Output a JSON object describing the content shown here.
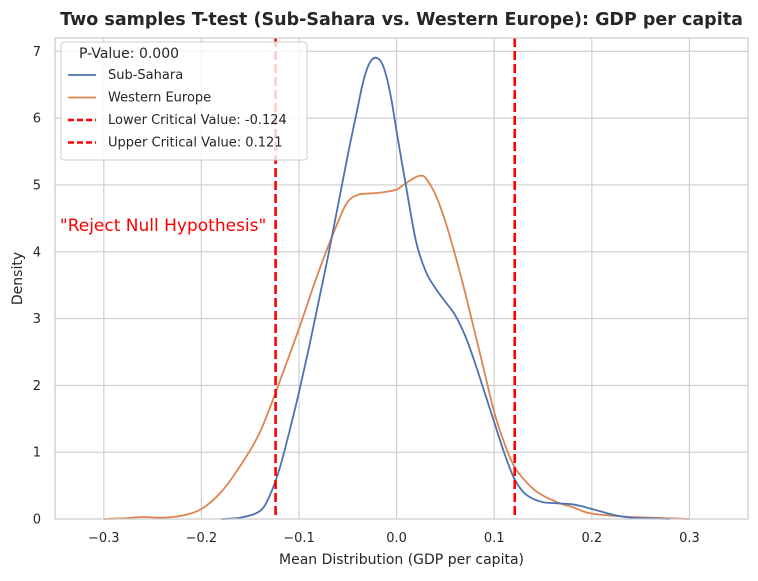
{
  "chart_data": {
    "type": "line",
    "title": "Two samples T-test (Sub-Sahara vs. Western Europe): GDP per capita",
    "xlabel": "Mean Distribution (GDP per capita)",
    "ylabel": "Density",
    "xlim": [
      -0.35,
      0.36
    ],
    "ylim": [
      0,
      7.2
    ],
    "grid": true,
    "legend_position": "top-left",
    "legend_title": "P-Value: 0.000",
    "x_ticks": [
      -0.3,
      -0.2,
      -0.1,
      0.0,
      0.1,
      0.2,
      0.3
    ],
    "x_tick_labels": [
      "−0.3",
      "−0.2",
      "−0.1",
      "0.0",
      "0.1",
      "0.2",
      "0.3"
    ],
    "y_ticks": [
      0,
      1,
      2,
      3,
      4,
      5,
      6,
      7
    ],
    "y_tick_labels": [
      "0",
      "1",
      "2",
      "3",
      "4",
      "5",
      "6",
      "7"
    ],
    "series": [
      {
        "name": "Sub-Sahara",
        "color": "#4c72b0",
        "x": [
          -0.18,
          -0.16,
          -0.14,
          -0.13,
          -0.12,
          -0.11,
          -0.1,
          -0.09,
          -0.08,
          -0.07,
          -0.06,
          -0.05,
          -0.04,
          -0.035,
          -0.03,
          -0.025,
          -0.02,
          -0.015,
          -0.01,
          -0.005,
          0.0,
          0.01,
          0.02,
          0.03,
          0.04,
          0.05,
          0.06,
          0.07,
          0.08,
          0.09,
          0.1,
          0.11,
          0.12,
          0.13,
          0.14,
          0.15,
          0.16,
          0.17,
          0.18,
          0.19,
          0.2,
          0.21,
          0.22,
          0.23,
          0.24,
          0.26,
          0.28
        ],
        "y": [
          0.0,
          0.02,
          0.12,
          0.35,
          0.75,
          1.3,
          1.9,
          2.55,
          3.25,
          3.95,
          4.7,
          5.45,
          6.15,
          6.5,
          6.75,
          6.88,
          6.9,
          6.82,
          6.6,
          6.25,
          5.8,
          4.95,
          4.15,
          3.7,
          3.45,
          3.25,
          3.05,
          2.75,
          2.35,
          1.9,
          1.45,
          1.0,
          0.62,
          0.4,
          0.3,
          0.25,
          0.24,
          0.23,
          0.22,
          0.19,
          0.15,
          0.11,
          0.07,
          0.04,
          0.02,
          0.01,
          0.0
        ]
      },
      {
        "name": "Western Europe",
        "color": "#dd8452",
        "x": [
          -0.3,
          -0.28,
          -0.26,
          -0.24,
          -0.22,
          -0.2,
          -0.18,
          -0.16,
          -0.14,
          -0.12,
          -0.1,
          -0.08,
          -0.06,
          -0.05,
          -0.04,
          -0.03,
          -0.02,
          -0.01,
          0.0,
          0.005,
          0.01,
          0.02,
          0.025,
          0.03,
          0.04,
          0.05,
          0.06,
          0.07,
          0.08,
          0.09,
          0.1,
          0.11,
          0.12,
          0.13,
          0.14,
          0.15,
          0.16,
          0.17,
          0.18,
          0.19,
          0.2,
          0.22,
          0.24,
          0.26,
          0.28,
          0.3
        ],
        "y": [
          0.0,
          0.01,
          0.03,
          0.02,
          0.05,
          0.15,
          0.4,
          0.8,
          1.3,
          2.05,
          2.85,
          3.7,
          4.45,
          4.75,
          4.85,
          4.87,
          4.88,
          4.9,
          4.93,
          4.98,
          5.03,
          5.12,
          5.14,
          5.1,
          4.85,
          4.45,
          3.95,
          3.4,
          2.8,
          2.2,
          1.6,
          1.15,
          0.8,
          0.6,
          0.45,
          0.35,
          0.28,
          0.22,
          0.18,
          0.12,
          0.08,
          0.05,
          0.03,
          0.02,
          0.01,
          0.0
        ]
      }
    ],
    "critical_values": [
      {
        "name": "Lower Critical Value: -0.124",
        "x": -0.124,
        "color": "#ff0000"
      },
      {
        "name": "Upper Critical Value: 0.121",
        "x": 0.121,
        "color": "#ff0000"
      }
    ],
    "annotations": [
      {
        "text": "\"Reject Null Hypothesis\"",
        "x": -0.345,
        "y": 4.4,
        "color": "#ff0000"
      }
    ]
  }
}
